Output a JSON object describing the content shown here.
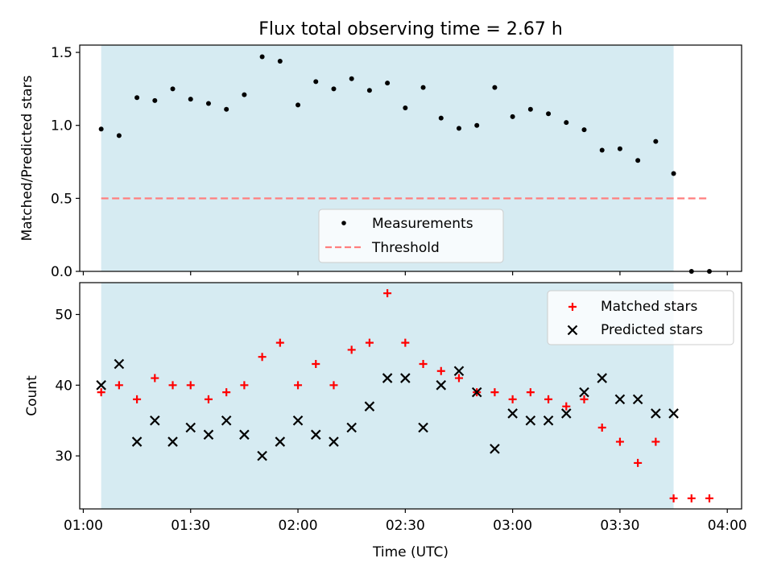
{
  "figure": {
    "title": "Flux total observing time = 2.67 h",
    "xlabel": "Time (UTC)",
    "x_tick_labels": [
      "01:00",
      "01:30",
      "02:00",
      "02:30",
      "03:00",
      "03:30",
      "04:00"
    ],
    "shaded_span_color": "#add8e6"
  },
  "chart_data": [
    {
      "type": "scatter",
      "title": "Flux total observing time = 2.67 h",
      "xlabel": "",
      "ylabel": "Matched/Predicted stars",
      "xlim": [
        "00:59",
        "04:04"
      ],
      "ylim": [
        0,
        1.55
      ],
      "y_ticks": [
        0.0,
        0.5,
        1.0,
        1.5
      ],
      "y_tick_labels": [
        "0.0",
        "0.5",
        "1.0",
        "1.5"
      ],
      "shaded_span": [
        "01:05",
        "03:45"
      ],
      "legend_position": "lower-center",
      "series": [
        {
          "name": "Measurements",
          "marker": "dot",
          "color": "#000000",
          "x": [
            "01:05",
            "01:10",
            "01:15",
            "01:20",
            "01:25",
            "01:30",
            "01:35",
            "01:40",
            "01:45",
            "01:50",
            "01:55",
            "02:00",
            "02:05",
            "02:10",
            "02:15",
            "02:20",
            "02:25",
            "02:30",
            "02:35",
            "02:40",
            "02:45",
            "02:50",
            "02:55",
            "03:00",
            "03:05",
            "03:10",
            "03:15",
            "03:20",
            "03:25",
            "03:30",
            "03:35",
            "03:40",
            "03:45",
            "03:50",
            "03:55"
          ],
          "y": [
            0.975,
            0.93,
            1.19,
            1.17,
            1.25,
            1.18,
            1.15,
            1.11,
            1.21,
            1.47,
            1.44,
            1.14,
            1.3,
            1.25,
            1.32,
            1.24,
            1.29,
            1.12,
            1.26,
            1.05,
            0.98,
            1.0,
            1.26,
            1.06,
            1.11,
            1.08,
            1.02,
            0.97,
            0.83,
            0.84,
            0.76,
            0.89,
            0.67,
            0.0,
            0.0
          ]
        },
        {
          "name": "Threshold",
          "line_style": "dashed",
          "color": "#ff7f7f",
          "x": [
            "01:05",
            "03:55"
          ],
          "y": [
            0.5,
            0.5
          ]
        }
      ]
    },
    {
      "type": "scatter",
      "xlabel": "Time (UTC)",
      "ylabel": "Count",
      "xlim": [
        "00:59",
        "04:04"
      ],
      "ylim": [
        22.5,
        54.5
      ],
      "y_ticks": [
        30,
        40,
        50
      ],
      "y_tick_labels": [
        "30",
        "40",
        "50"
      ],
      "x_ticks": [
        "01:00",
        "01:30",
        "02:00",
        "02:30",
        "03:00",
        "03:30",
        "04:00"
      ],
      "x_tick_labels": [
        "01:00",
        "01:30",
        "02:00",
        "02:30",
        "03:00",
        "03:30",
        "04:00"
      ],
      "shaded_span": [
        "01:05",
        "03:45"
      ],
      "legend_position": "upper-right",
      "series": [
        {
          "name": "Matched stars",
          "marker": "plus",
          "color": "#ff0000",
          "x": [
            "01:05",
            "01:10",
            "01:15",
            "01:20",
            "01:25",
            "01:30",
            "01:35",
            "01:40",
            "01:45",
            "01:50",
            "01:55",
            "02:00",
            "02:05",
            "02:10",
            "02:15",
            "02:20",
            "02:25",
            "02:30",
            "02:35",
            "02:40",
            "02:45",
            "02:50",
            "02:55",
            "03:00",
            "03:05",
            "03:10",
            "03:15",
            "03:20",
            "03:25",
            "03:30",
            "03:35",
            "03:40",
            "03:45",
            "03:50",
            "03:55"
          ],
          "y": [
            39,
            40,
            38,
            41,
            40,
            40,
            38,
            39,
            40,
            44,
            46,
            40,
            43,
            40,
            45,
            46,
            53,
            46,
            43,
            42,
            41,
            39,
            39,
            38,
            39,
            38,
            37,
            38,
            34,
            32,
            29,
            32,
            24,
            24,
            24
          ]
        },
        {
          "name": "Predicted stars",
          "marker": "x",
          "color": "#000000",
          "x": [
            "01:05",
            "01:10",
            "01:15",
            "01:20",
            "01:25",
            "01:30",
            "01:35",
            "01:40",
            "01:45",
            "01:50",
            "01:55",
            "02:00",
            "02:05",
            "02:10",
            "02:15",
            "02:20",
            "02:25",
            "02:30",
            "02:35",
            "02:40",
            "02:45",
            "02:50",
            "02:55",
            "03:00",
            "03:05",
            "03:10",
            "03:15",
            "03:20",
            "03:25",
            "03:30",
            "03:35",
            "03:40",
            "03:45"
          ],
          "y": [
            40,
            43,
            32,
            35,
            32,
            34,
            33,
            35,
            33,
            30,
            32,
            35,
            33,
            32,
            34,
            37,
            41,
            41,
            34,
            40,
            42,
            39,
            31,
            36,
            35,
            35,
            36,
            39,
            41,
            38,
            38,
            36,
            36
          ]
        }
      ]
    }
  ]
}
